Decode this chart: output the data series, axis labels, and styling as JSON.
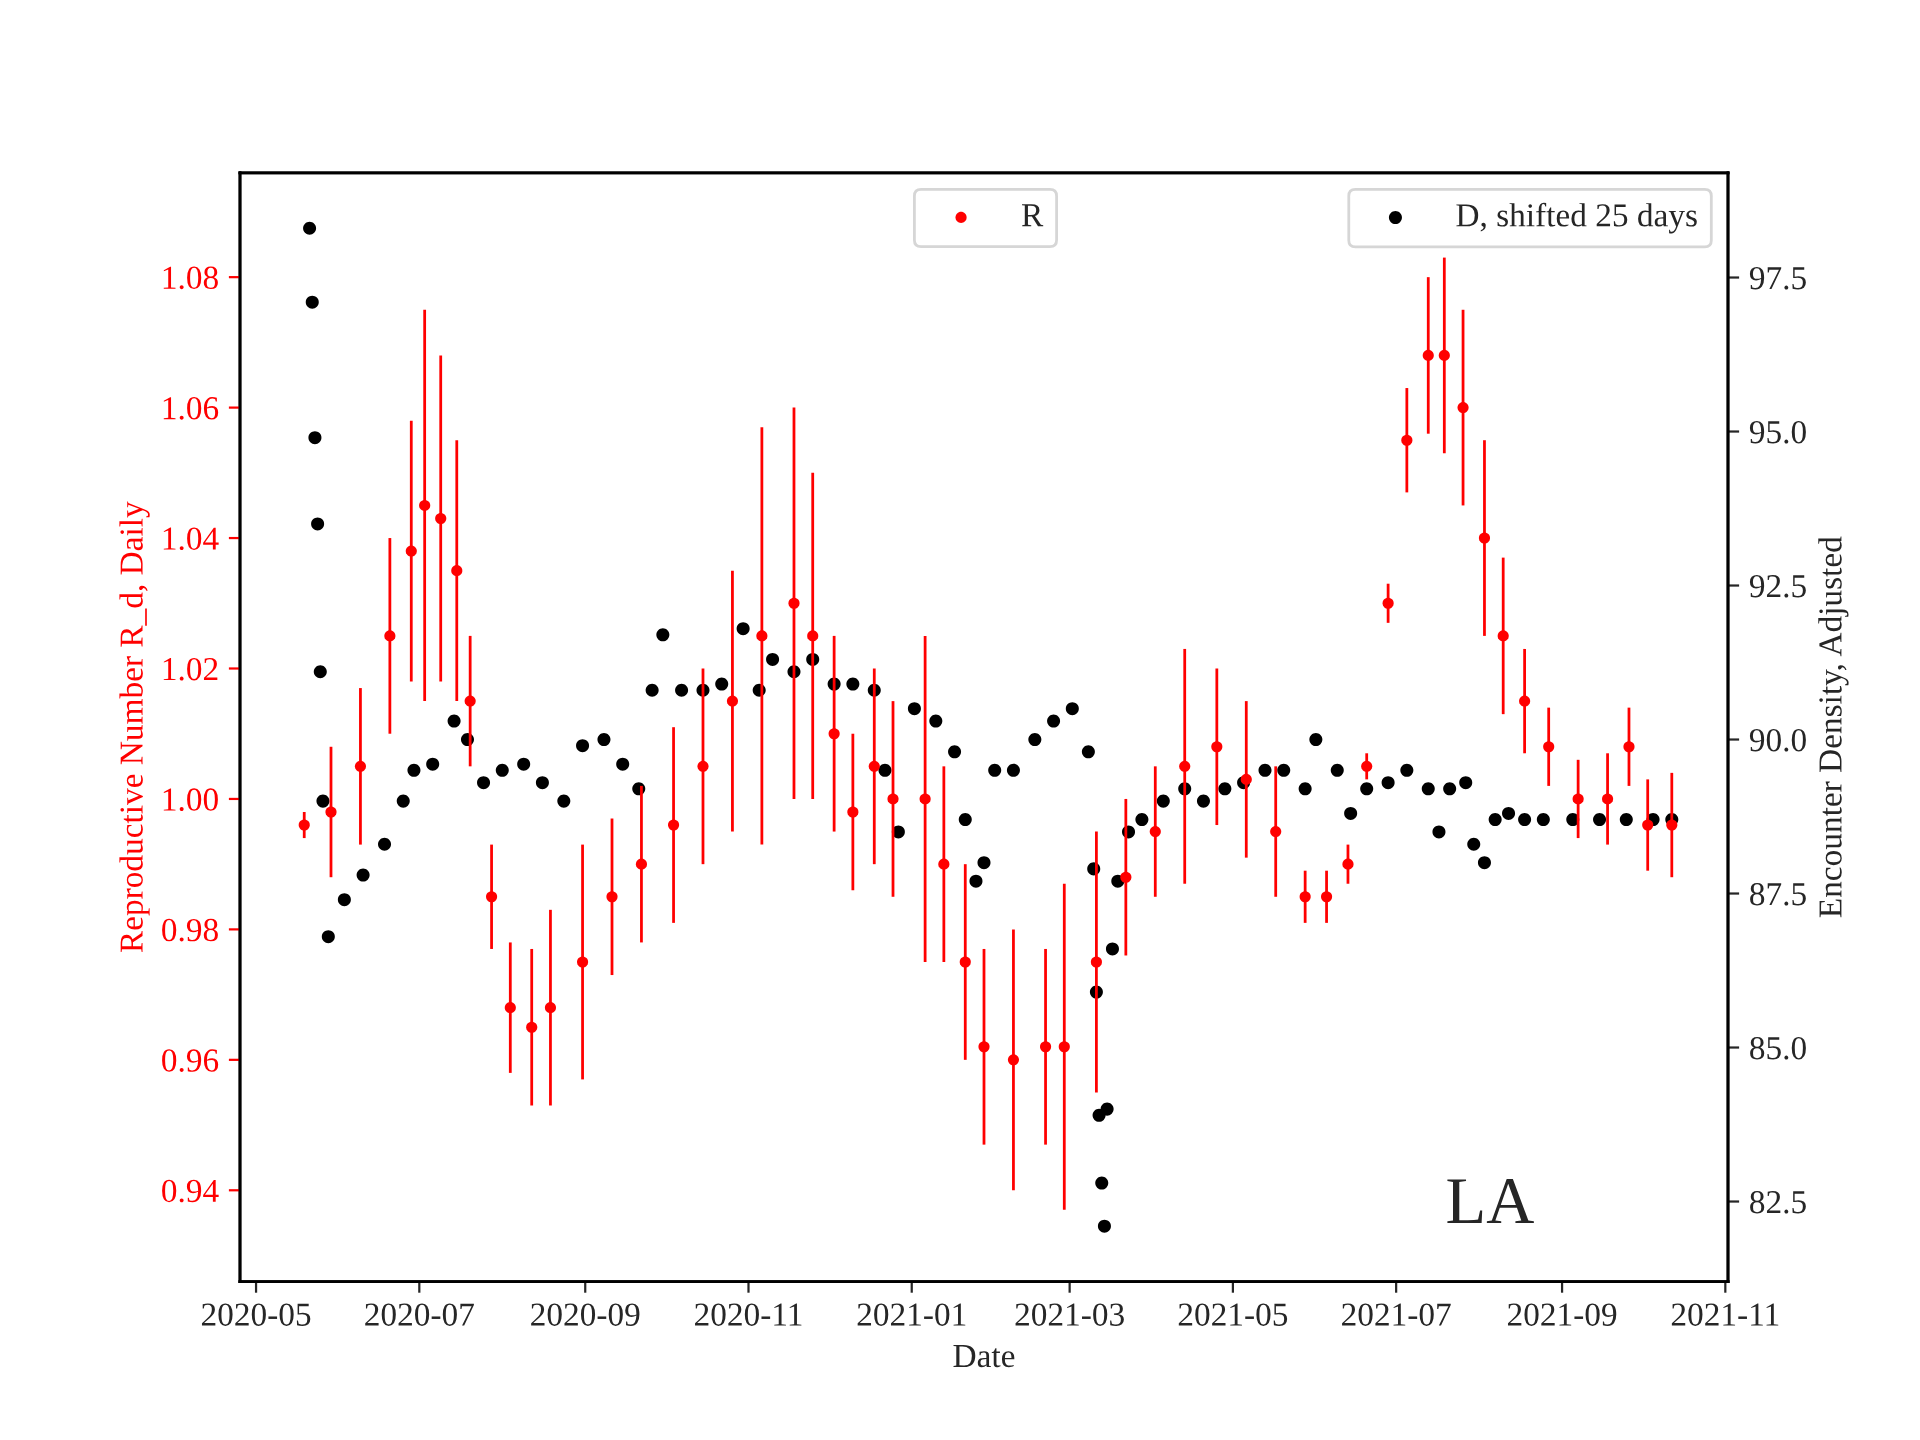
{
  "chart_data": {
    "type": "scatter",
    "xlabel": "Date",
    "ylabel": "Reproductive Number R_d, Daily",
    "y2label": "Encounter Density, Adjusted",
    "xlim": [
      "2020-04-25",
      "2021-11-02"
    ],
    "xticks": [
      "2020-05",
      "2020-07",
      "2020-09",
      "2020-11",
      "2021-01",
      "2021-03",
      "2021-05",
      "2021-07",
      "2021-09",
      "2021-11"
    ],
    "ylim": [
      0.926,
      1.096
    ],
    "yticks": [
      0.94,
      0.96,
      0.98,
      {
        "value": 1.0,
        "label": "1.00"
      },
      1.02,
      1.04,
      1.06,
      1.08
    ],
    "y2lim": [
      81.2,
      99.2
    ],
    "y2ticks": [
      82.5,
      {
        "value": 85.0,
        "label": "85.0"
      },
      87.5,
      {
        "value": 90.0,
        "label": "90.0"
      },
      92.5,
      {
        "value": 95.0,
        "label": "95.0"
      },
      97.5
    ],
    "marker": "circle",
    "grid": false,
    "legend": "top right",
    "annotations": [
      "LA"
    ],
    "series": [
      {
        "name": "R",
        "color": "#ff0000",
        "x": [
          "2020-05-19",
          "2020-05-29",
          "2020-06-09",
          "2020-06-20",
          "2020-06-28",
          "2020-07-03",
          "2020-07-09",
          "2020-07-15",
          "2020-07-20",
          "2020-07-28",
          "2020-08-04",
          "2020-08-12",
          "2020-08-19",
          "2020-08-31",
          "2020-09-11",
          "2020-09-22",
          "2020-10-04",
          "2020-10-15",
          "2020-10-26",
          "2020-11-06",
          "2020-11-18",
          "2020-11-25",
          "2020-12-03",
          "2020-12-10",
          "2020-12-18",
          "2020-12-25",
          "2021-01-06",
          "2021-01-13",
          "2021-01-21",
          "2021-01-28",
          "2021-02-08",
          "2021-02-20",
          "2021-02-27",
          "2021-03-11",
          "2021-03-22",
          "2021-04-02",
          "2021-04-13",
          "2021-04-25",
          "2021-05-06",
          "2021-05-17",
          "2021-05-28",
          "2021-06-05",
          "2021-06-13",
          "2021-06-20",
          "2021-06-28",
          "2021-07-05",
          "2021-07-13",
          "2021-07-19",
          "2021-07-26",
          "2021-08-03",
          "2021-08-10",
          "2021-08-18",
          "2021-08-27",
          "2021-09-07",
          "2021-09-18",
          "2021-09-26",
          "2021-10-03",
          "2021-10-12"
        ],
        "values": [
          0.996,
          0.998,
          1.005,
          1.025,
          1.038,
          1.045,
          1.043,
          1.035,
          1.015,
          0.985,
          0.968,
          0.965,
          0.968,
          0.975,
          0.985,
          0.99,
          0.996,
          1.005,
          1.015,
          1.025,
          1.03,
          1.025,
          1.01,
          0.998,
          1.005,
          1.0,
          1.0,
          0.99,
          0.975,
          0.962,
          0.96,
          0.962,
          0.962,
          0.975,
          0.988,
          0.995,
          1.005,
          1.008,
          1.003,
          0.995,
          0.985,
          0.985,
          0.99,
          1.005,
          1.03,
          1.055,
          1.068,
          1.068,
          1.06,
          1.04,
          1.025,
          1.015,
          1.008,
          1.0,
          1.0,
          1.008,
          0.996,
          0.996
        ],
        "errors": [
          0.002,
          0.01,
          0.012,
          0.015,
          0.02,
          0.03,
          0.025,
          0.02,
          0.01,
          0.008,
          0.01,
          0.012,
          0.015,
          0.018,
          0.012,
          0.012,
          0.015,
          0.015,
          0.02,
          0.032,
          0.03,
          0.025,
          0.015,
          0.012,
          0.015,
          0.015,
          0.025,
          0.015,
          0.015,
          0.015,
          0.02,
          0.015,
          0.025,
          0.02,
          0.012,
          0.01,
          0.018,
          0.012,
          0.012,
          0.01,
          0.004,
          0.004,
          0.003,
          0.002,
          0.003,
          0.008,
          0.012,
          0.015,
          0.015,
          0.015,
          0.012,
          0.008,
          0.006,
          0.006,
          0.007,
          0.006,
          0.007,
          0.008
        ]
      },
      {
        "name": "D, shifted 25 days",
        "color": "#000000",
        "axis": "y2",
        "x": [
          "2020-05-21",
          "2020-05-22",
          "2020-05-23",
          "2020-05-24",
          "2020-05-25",
          "2020-05-26",
          "2020-05-28",
          "2020-06-03",
          "2020-06-10",
          "2020-06-18",
          "2020-06-25",
          "2020-06-29",
          "2020-07-06",
          "2020-07-14",
          "2020-07-19",
          "2020-07-25",
          "2020-08-01",
          "2020-08-09",
          "2020-08-16",
          "2020-08-24",
          "2020-08-31",
          "2020-09-08",
          "2020-09-15",
          "2020-09-21",
          "2020-09-26",
          "2020-09-30",
          "2020-10-07",
          "2020-10-15",
          "2020-10-22",
          "2020-10-30",
          "2020-11-05",
          "2020-11-10",
          "2020-11-18",
          "2020-11-25",
          "2020-12-03",
          "2020-12-10",
          "2020-12-18",
          "2020-12-22",
          "2020-12-27",
          "2021-01-02",
          "2021-01-10",
          "2021-01-17",
          "2021-01-21",
          "2021-01-25",
          "2021-01-28",
          "2021-02-01",
          "2021-02-08",
          "2021-02-16",
          "2021-02-23",
          "2021-03-02",
          "2021-03-08",
          "2021-03-10",
          "2021-03-11",
          "2021-03-12",
          "2021-03-13",
          "2021-03-14",
          "2021-03-15",
          "2021-03-17",
          "2021-03-19",
          "2021-03-23",
          "2021-03-28",
          "2021-04-05",
          "2021-04-13",
          "2021-04-20",
          "2021-04-28",
          "2021-05-05",
          "2021-05-13",
          "2021-05-20",
          "2021-05-28",
          "2021-06-01",
          "2021-06-09",
          "2021-06-14",
          "2021-06-20",
          "2021-06-28",
          "2021-07-05",
          "2021-07-13",
          "2021-07-17",
          "2021-07-21",
          "2021-07-27",
          "2021-07-30",
          "2021-08-03",
          "2021-08-07",
          "2021-08-12",
          "2021-08-18",
          "2021-08-25",
          "2021-09-05",
          "2021-09-15",
          "2021-09-25",
          "2021-10-05",
          "2021-10-12"
        ],
        "values": [
          98.3,
          97.1,
          94.9,
          93.5,
          91.1,
          89.0,
          86.8,
          87.4,
          87.8,
          88.3,
          89.0,
          89.5,
          89.6,
          90.3,
          90.0,
          89.3,
          89.5,
          89.6,
          89.3,
          89.0,
          89.9,
          90.0,
          89.6,
          89.2,
          90.8,
          91.7,
          90.8,
          90.8,
          90.9,
          91.8,
          90.8,
          91.3,
          91.1,
          91.3,
          90.9,
          90.9,
          90.8,
          89.5,
          88.5,
          90.5,
          90.3,
          89.8,
          88.7,
          87.7,
          88.0,
          89.5,
          89.5,
          90.0,
          90.3,
          90.5,
          89.8,
          87.9,
          85.9,
          83.9,
          82.8,
          82.1,
          84.0,
          86.6,
          87.7,
          88.5,
          88.7,
          89.0,
          89.2,
          89.0,
          89.2,
          89.3,
          89.5,
          89.5,
          89.2,
          90.0,
          89.5,
          88.8,
          89.2,
          89.3,
          89.5,
          89.2,
          88.5,
          89.2,
          89.3,
          88.3,
          88.0,
          88.7,
          88.8,
          88.7,
          88.7,
          88.7,
          88.7,
          88.7,
          88.7,
          88.7
        ]
      }
    ]
  }
}
